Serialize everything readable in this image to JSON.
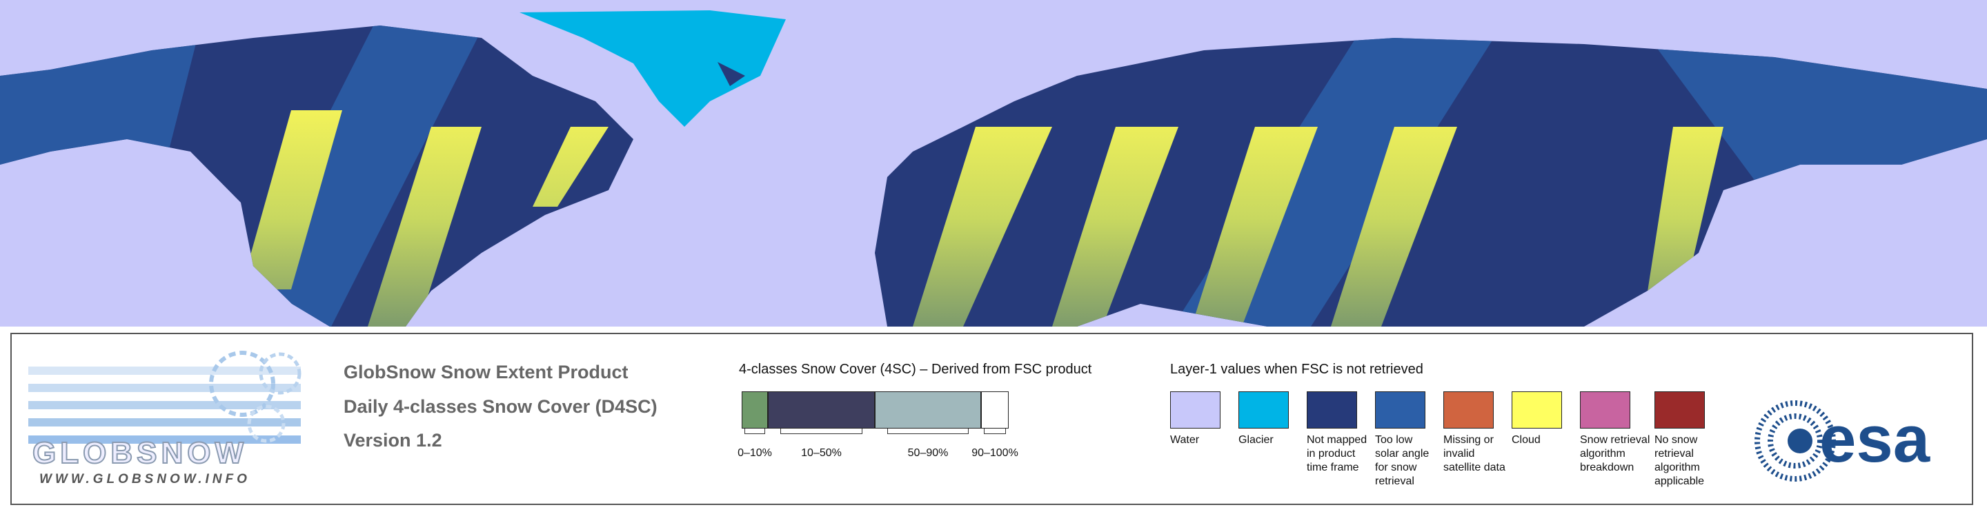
{
  "header": {
    "lines": [
      "GlobSnow Snow Extent Product",
      "Daily 4-classes Snow Cover (D4SC)",
      "Version 1.2"
    ]
  },
  "logo": {
    "name": "GLOBSNOW",
    "url": "WWW.GLOBSNOW.INFO",
    "agency": "esa"
  },
  "snow_cover_legend": {
    "title": "4-classes Snow Cover (4SC) – Derived from FSC product",
    "classes": [
      {
        "label": "0–10%",
        "color": "#6f9a6a"
      },
      {
        "label": "10–50%",
        "color": "#3e3e5e"
      },
      {
        "label": "50–90%",
        "color": "#a0b8bc"
      },
      {
        "label": "90–100%",
        "color": "#ffffff"
      }
    ]
  },
  "layer_legend": {
    "title": "Layer-1 values when FSC is not retrieved",
    "items": [
      {
        "label": "Water",
        "color": "#c8c8fa"
      },
      {
        "label": "Glacier",
        "color": "#00b4e6"
      },
      {
        "label": "Not mapped in product time frame",
        "color": "#263a7a"
      },
      {
        "label": "Too low solar angle for snow retrieval",
        "color": "#2c5fa8"
      },
      {
        "label": "Missing or invalid satellite data",
        "color": "#d06440"
      },
      {
        "label": "Cloud",
        "color": "#ffff60"
      },
      {
        "label": "Snow retrieval algorithm breakdown",
        "color": "#c864a0"
      },
      {
        "label": "No snow retrieval algorithm applicable",
        "color": "#9a2a2a"
      }
    ]
  }
}
